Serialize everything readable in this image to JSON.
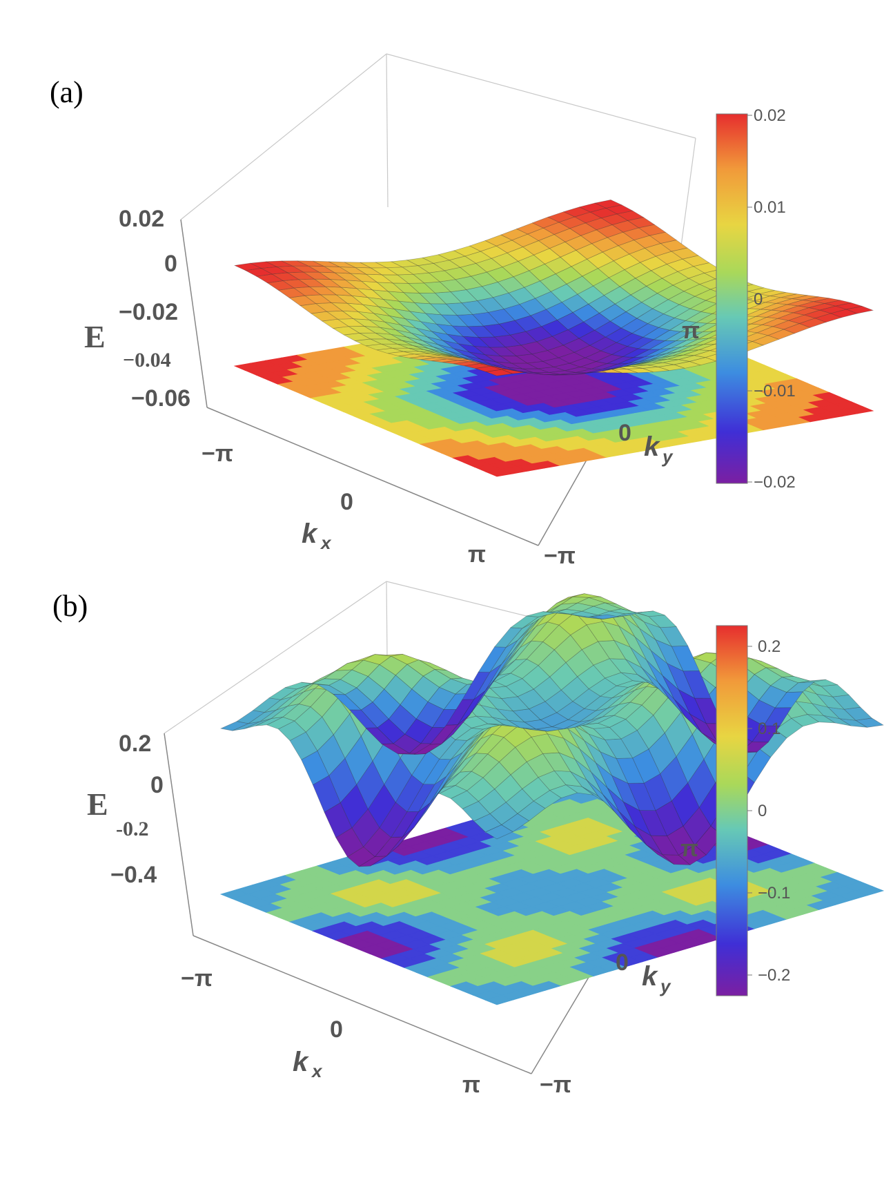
{
  "panels": [
    {
      "label": "(a)",
      "z_axis": {
        "name": "E",
        "ticks": [
          "0.02",
          "0",
          "−0.02",
          "−0.04",
          "−0.06"
        ]
      },
      "x_axis": {
        "name": "k",
        "sub": "x",
        "ticks": [
          "−π",
          "0",
          "π"
        ]
      },
      "y_axis": {
        "name": "k",
        "sub": "y",
        "ticks": [
          "π",
          "0",
          "−π"
        ]
      },
      "colorbar_ticks": [
        "0.02",
        "0.01",
        "0",
        "−0.01",
        "−0.02"
      ]
    },
    {
      "label": "(b)",
      "z_axis": {
        "name": "E",
        "ticks": [
          "0.2",
          "0",
          "-0.2",
          "−0.4"
        ]
      },
      "x_axis": {
        "name": "k",
        "sub": "x",
        "ticks": [
          "−π",
          "0",
          "π"
        ]
      },
      "y_axis": {
        "name": "k",
        "sub": "y",
        "ticks": [
          "π",
          "0",
          "−π"
        ]
      },
      "colorbar_ticks": [
        "0.2",
        "0.1",
        "0",
        "−0.1",
        "−0.2"
      ]
    }
  ],
  "colors": {
    "rainbow": [
      "#7b1fa2",
      "#3f2fd6",
      "#3d8de0",
      "#67c9b5",
      "#a9d85a",
      "#e8d542",
      "#f19a3a",
      "#e62e2e"
    ]
  },
  "chart_data": [
    {
      "type": "surface",
      "panel": "(a)",
      "x_range": [
        -3.14159,
        3.14159
      ],
      "y_range": [
        -3.14159,
        3.14159
      ],
      "zlim": [
        -0.06,
        0.02
      ],
      "colorbar_range": [
        -0.02,
        0.02
      ],
      "function": "E = -0.01*(cos kx + cos ky) - 0.005*cos kx*cos ky + 0.002",
      "grid_lines": 24,
      "contour_projection": true
    },
    {
      "type": "surface",
      "panel": "(b)",
      "x_range": [
        -3.14159,
        3.14159
      ],
      "y_range": [
        -3.14159,
        3.14159
      ],
      "zlim": [
        -0.4,
        0.2
      ],
      "colorbar_range": [
        -0.22,
        0.22
      ],
      "function": "E = 0.22*sin^2 kx*sin^2 ky-based multi-lobe surface",
      "grid_lines": 24,
      "contour_projection": true
    }
  ]
}
